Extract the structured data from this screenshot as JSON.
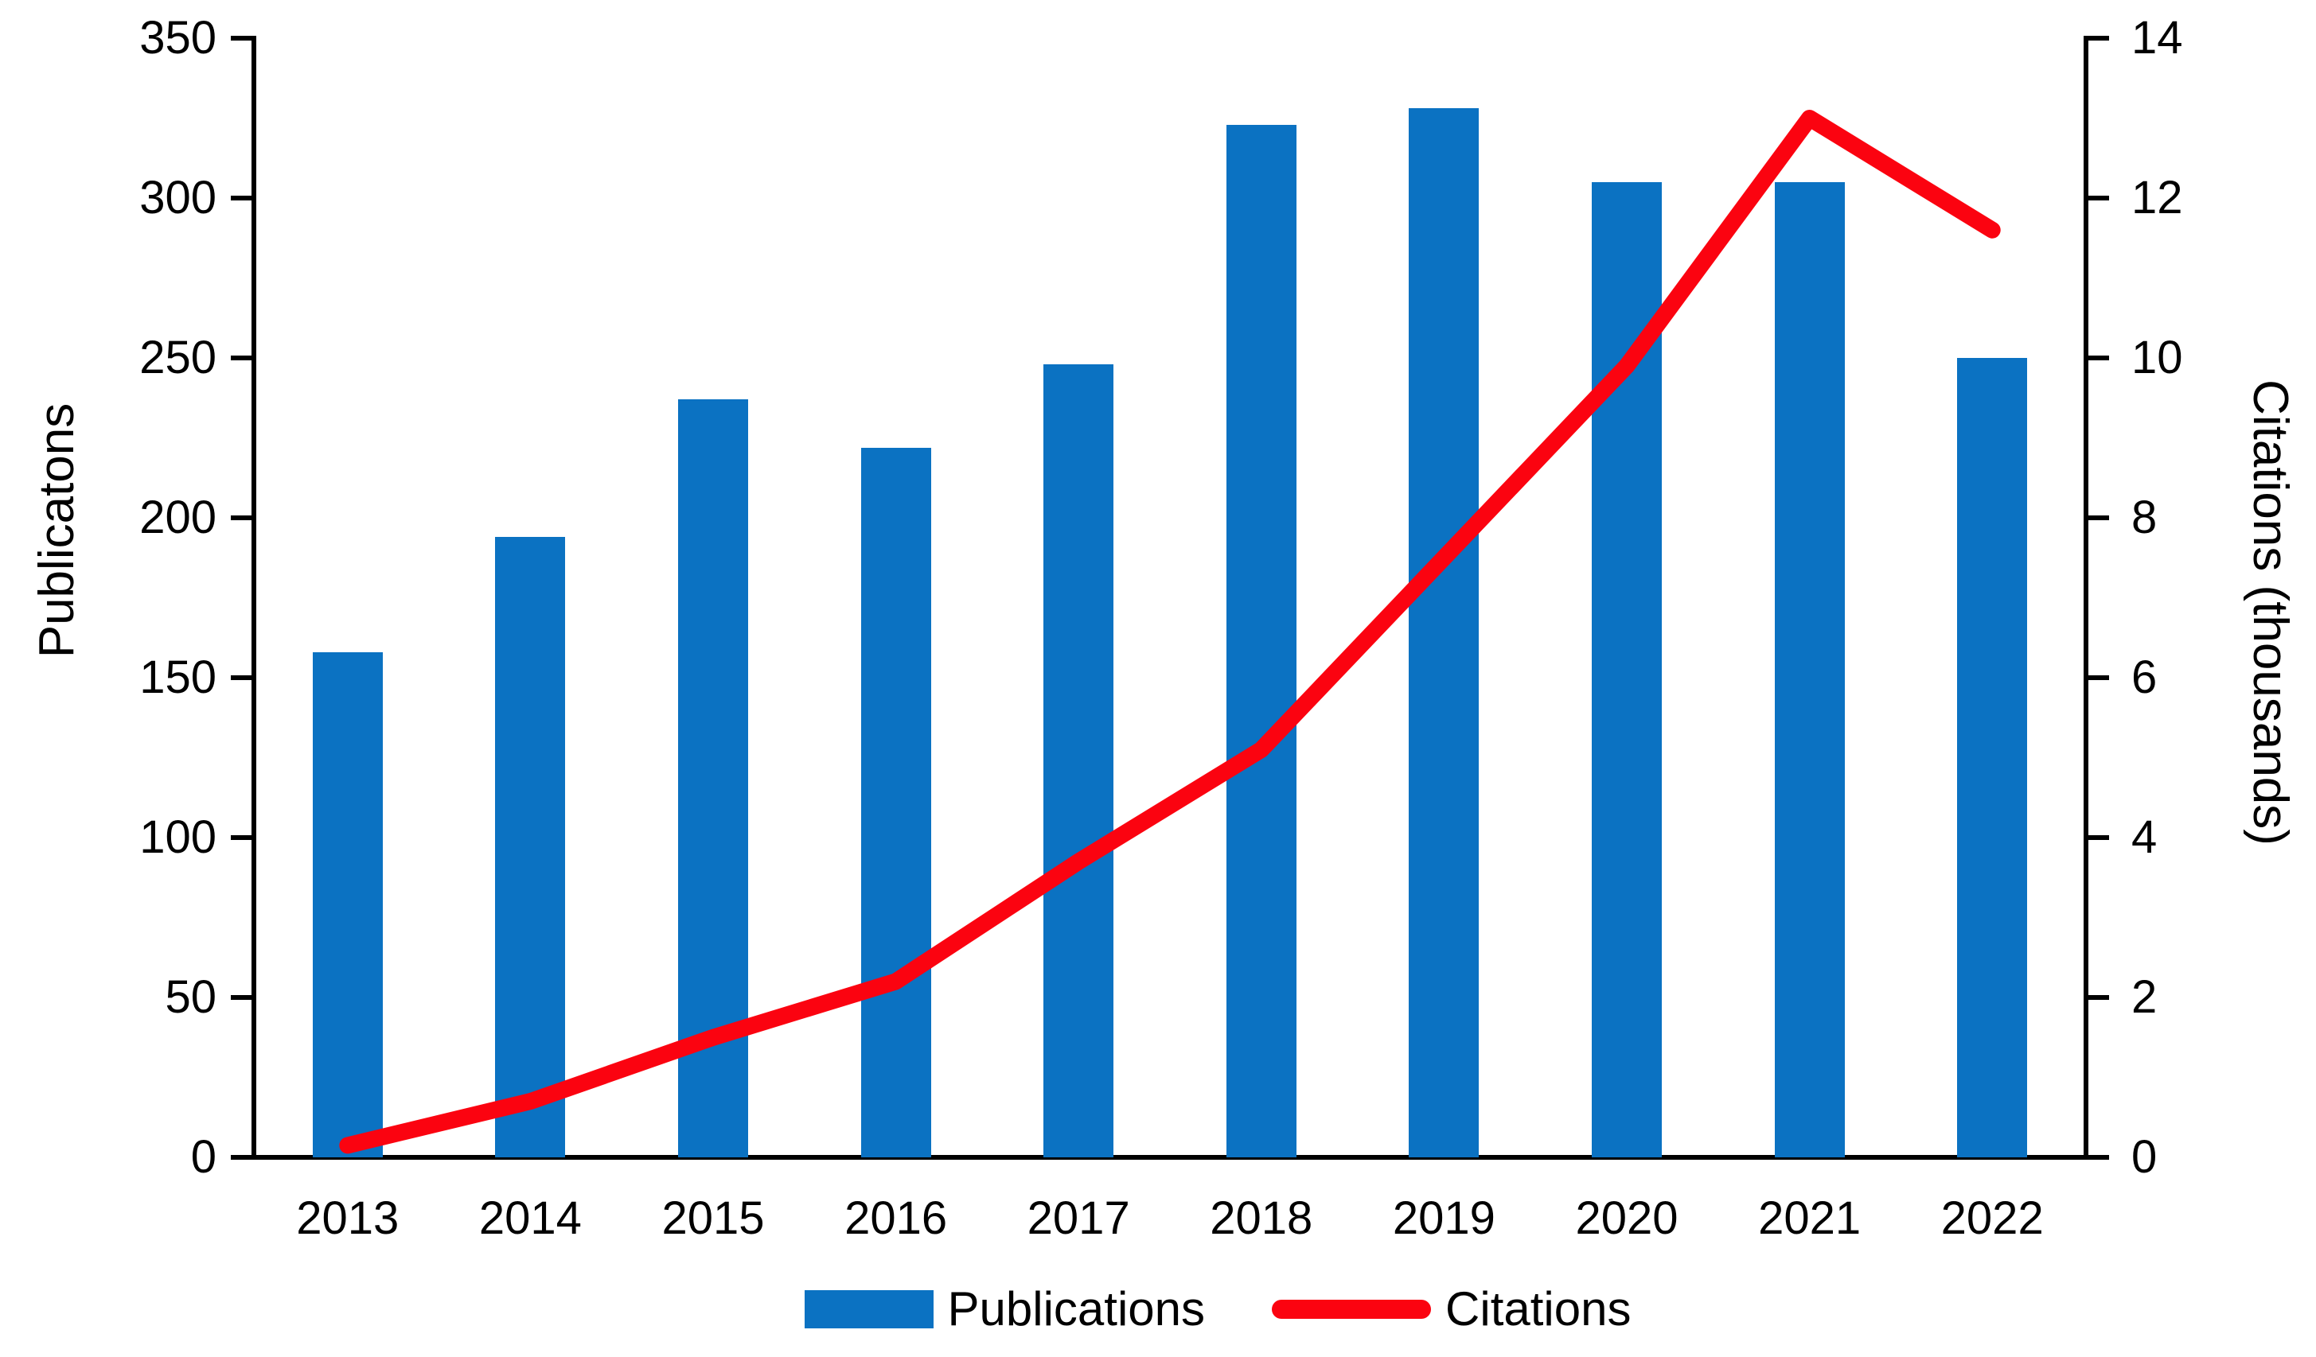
{
  "chart_data": {
    "type": "bar+line",
    "title": "",
    "categories": [
      "2013",
      "2014",
      "2015",
      "2016",
      "2017",
      "2018",
      "2019",
      "2020",
      "2021",
      "2022"
    ],
    "series": [
      {
        "name": "Publications",
        "type": "bar",
        "axis": "left",
        "color": "#0B72C2",
        "values": [
          158,
          194,
          237,
          222,
          248,
          323,
          328,
          305,
          305,
          250
        ]
      },
      {
        "name": "Citations",
        "type": "line",
        "axis": "right",
        "color": "#FB0310",
        "values": [
          0.15,
          0.7,
          1.5,
          2.2,
          3.7,
          5.1,
          7.5,
          9.9,
          13.0,
          11.6
        ]
      }
    ],
    "left_axis": {
      "label": "Publicatons",
      "min": 0,
      "max": 350,
      "step": 50,
      "ticks": [
        0,
        50,
        100,
        150,
        200,
        250,
        300,
        350
      ]
    },
    "right_axis": {
      "label": "Citations (thousands)",
      "min": 0,
      "max": 14,
      "step": 2,
      "ticks": [
        0,
        2,
        4,
        6,
        8,
        10,
        12,
        14
      ]
    },
    "legend": {
      "position": "bottom",
      "entries": [
        "Publications",
        "Citations"
      ]
    },
    "grid": "off",
    "background": "#ffffff"
  }
}
